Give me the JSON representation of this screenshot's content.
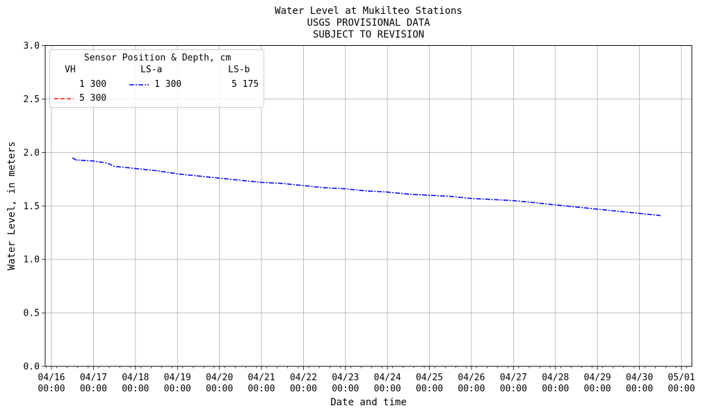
{
  "chart_data": {
    "type": "line",
    "title": [
      "Water Level at Mukilteo Stations",
      "USGS PROVISIONAL DATA",
      "SUBJECT TO REVISION"
    ],
    "xlabel": "Date and time",
    "ylabel": "Water Level, in meters",
    "xlim": [
      "04/16 00:00",
      "05/01 00:00"
    ],
    "ylim": [
      0.0,
      3.0
    ],
    "grid": true,
    "x_ticks": [
      "04/16\n00:00",
      "04/17\n00:00",
      "04/18\n00:00",
      "04/19\n00:00",
      "04/20\n00:00",
      "04/21\n00:00",
      "04/22\n00:00",
      "04/23\n00:00",
      "04/24\n00:00",
      "04/25\n00:00",
      "04/26\n00:00",
      "04/27\n00:00",
      "04/28\n00:00",
      "04/29\n00:00",
      "04/30\n00:00",
      "05/01\n00:00"
    ],
    "y_ticks": [
      "0.0",
      "0.5",
      "1.0",
      "1.5",
      "2.0",
      "2.5",
      "3.0"
    ],
    "legend": {
      "title": "Sensor Position & Depth, cm",
      "placement": "top-left",
      "columns": [
        "VH",
        "LS-a",
        "LS-b"
      ],
      "entries": [
        {
          "column": "VH",
          "label": "1 300",
          "color": "#ffffff",
          "style": "none"
        },
        {
          "column": "VH",
          "label": "5 300",
          "color": "#ff0000",
          "style": "dashed"
        },
        {
          "column": "LS-a",
          "label": "1 300",
          "color": "#0000ff",
          "style": "dashdot"
        },
        {
          "column": "LS-b",
          "label": "5 175",
          "color": "#ffffff",
          "style": "none"
        }
      ]
    },
    "series": [
      {
        "name": "LS-a 1 300",
        "color": "#0000ff",
        "style": "dashdot",
        "x": [
          "04/16 12:00",
          "04/16 14:00",
          "04/17 00:00",
          "04/17 08:00",
          "04/17 12:00",
          "04/18 00:00",
          "04/18 12:00",
          "04/19 00:00",
          "04/19 12:00",
          "04/20 00:00",
          "04/20 12:00",
          "04/21 00:00",
          "04/21 12:00",
          "04/22 00:00",
          "04/22 12:00",
          "04/23 00:00",
          "04/23 12:00",
          "04/24 00:00",
          "04/24 12:00",
          "04/25 00:00",
          "04/25 12:00",
          "04/26 00:00",
          "04/26 12:00",
          "04/27 00:00",
          "04/27 12:00",
          "04/28 00:00",
          "04/28 12:00",
          "04/29 00:00",
          "04/29 12:00",
          "04/30 00:00",
          "04/30 12:00"
        ],
        "y": [
          1.95,
          1.93,
          1.92,
          1.9,
          1.87,
          1.85,
          1.83,
          1.8,
          1.78,
          1.76,
          1.74,
          1.72,
          1.71,
          1.69,
          1.67,
          1.66,
          1.64,
          1.63,
          1.61,
          1.6,
          1.59,
          1.57,
          1.56,
          1.55,
          1.53,
          1.51,
          1.49,
          1.47,
          1.45,
          1.43,
          1.41
        ]
      }
    ]
  }
}
